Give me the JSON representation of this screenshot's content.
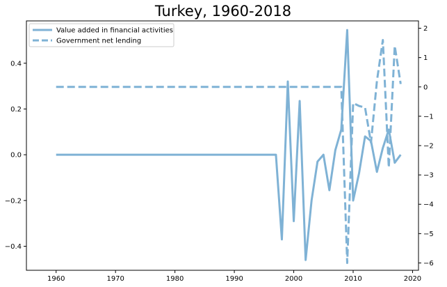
{
  "chart_data": {
    "type": "line",
    "title": "Turkey, 1960-2018",
    "xlabel": "",
    "ylabel": "",
    "xlim": [
      1955,
      2021
    ],
    "ylim_left": [
      -0.505,
      0.585
    ],
    "ylim_right": [
      -6.25,
      2.25
    ],
    "grid": false,
    "legend_position": "top-left",
    "x_ticks": [
      1960,
      1970,
      1980,
      1990,
      2000,
      2010,
      2020
    ],
    "y_left_ticks": [
      -0.4,
      -0.2,
      0.0,
      0.2,
      0.4
    ],
    "y_right_ticks": [
      -6,
      -5,
      -4,
      -3,
      -2,
      -1,
      0,
      1,
      2
    ],
    "x_tick_labels": [
      "1960",
      "1970",
      "1980",
      "1990",
      "2000",
      "2010",
      "2020"
    ],
    "y_left_tick_labels": [
      "−0.4",
      "−0.2",
      "0.0",
      "0.2",
      "0.4"
    ],
    "y_right_tick_labels": [
      "−6",
      "−5",
      "−4",
      "−3",
      "−2",
      "−1",
      "0",
      "1",
      "2"
    ],
    "color": "#7fb2d5",
    "series": [
      {
        "name": "Value added in financial activities",
        "axis": "left",
        "style": "solid",
        "x": [
          1960,
          1961,
          1962,
          1963,
          1964,
          1965,
          1966,
          1967,
          1968,
          1969,
          1970,
          1971,
          1972,
          1973,
          1974,
          1975,
          1976,
          1977,
          1978,
          1979,
          1980,
          1981,
          1982,
          1983,
          1984,
          1985,
          1986,
          1987,
          1988,
          1989,
          1990,
          1991,
          1992,
          1993,
          1994,
          1995,
          1996,
          1997,
          1998,
          1999,
          2000,
          2001,
          2002,
          2003,
          2004,
          2005,
          2006,
          2007,
          2008,
          2009,
          2010,
          2011,
          2012,
          2013,
          2014,
          2015,
          2016,
          2017,
          2018
        ],
        "values": [
          0,
          0,
          0,
          0,
          0,
          0,
          0,
          0,
          0,
          0,
          0,
          0,
          0,
          0,
          0,
          0,
          0,
          0,
          0,
          0,
          0,
          0,
          0,
          0,
          0,
          0,
          0,
          0,
          0,
          0,
          0,
          0,
          0,
          0,
          0,
          0,
          0,
          0,
          -0.37,
          0.32,
          -0.29,
          0.235,
          -0.46,
          -0.2,
          -0.03,
          0.0,
          -0.155,
          0.02,
          0.11,
          0.545,
          -0.2,
          -0.08,
          0.08,
          0.06,
          -0.075,
          0.03,
          0.11,
          -0.035,
          0.0
        ]
      },
      {
        "name": "Government net lending",
        "axis": "right",
        "style": "dashed",
        "x": [
          1960,
          1961,
          1962,
          1963,
          1964,
          1965,
          1966,
          1967,
          1968,
          1969,
          1970,
          1971,
          1972,
          1973,
          1974,
          1975,
          1976,
          1977,
          1978,
          1979,
          1980,
          1981,
          1982,
          1983,
          1984,
          1985,
          1986,
          1987,
          1988,
          1989,
          1990,
          1991,
          1992,
          1993,
          1994,
          1995,
          1996,
          1997,
          1998,
          1999,
          2000,
          2001,
          2002,
          2003,
          2004,
          2005,
          2006,
          2007,
          2008,
          2009,
          2010,
          2011,
          2012,
          2013,
          2014,
          2015,
          2016,
          2017,
          2018
        ],
        "values": [
          0,
          0,
          0,
          0,
          0,
          0,
          0,
          0,
          0,
          0,
          0,
          0,
          0,
          0,
          0,
          0,
          0,
          0,
          0,
          0,
          0,
          0,
          0,
          0,
          0,
          0,
          0,
          0,
          0,
          0,
          0,
          0,
          0,
          0,
          0,
          0,
          0,
          0,
          0,
          0,
          0,
          0,
          0,
          0,
          0,
          0,
          0,
          0,
          0,
          -6.0,
          -0.55,
          -0.65,
          -0.7,
          -1.9,
          0.2,
          1.6,
          -2.75,
          1.4,
          0.1
        ]
      }
    ]
  }
}
